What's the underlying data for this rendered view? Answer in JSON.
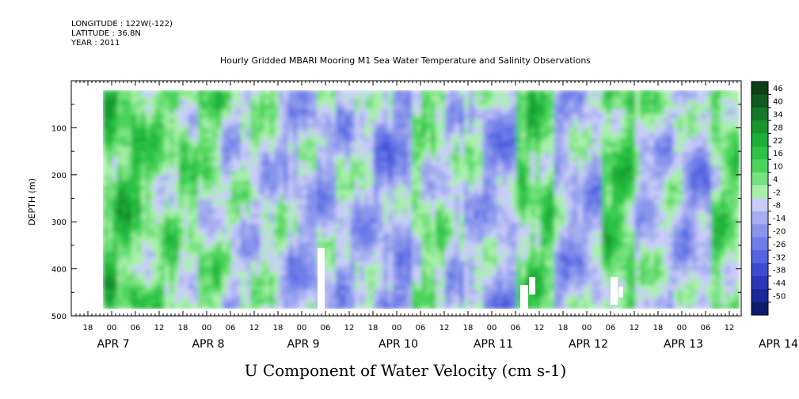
{
  "header": {
    "longitude": "LONGITUDE : 122W(-122)",
    "latitude": "LATITUDE : 36.8N",
    "year": "YEAR : 2011"
  },
  "chart_data": {
    "type": "heatmap",
    "title": "Hourly Gridded MBARI Mooring M1 Sea Water Temperature and Salinity Observations",
    "xlabel": "U Component of Water Velocity (cm s-1)",
    "ylabel": "DEPTH (m)",
    "ylim": [
      500,
      0
    ],
    "yticks": [
      "100",
      "200",
      "300",
      "400",
      "500"
    ],
    "ytick_values": [
      100,
      200,
      300,
      400,
      500
    ],
    "x_hour_labels": [
      "18",
      "00",
      "06",
      "12",
      "18",
      "00",
      "06",
      "12",
      "18",
      "00",
      "06",
      "12",
      "18",
      "00",
      "06",
      "12",
      "18",
      "00",
      "06",
      "12",
      "18",
      "00",
      "06",
      "12",
      "18",
      "00",
      "06",
      "12"
    ],
    "x_date_labels": [
      "APR  7",
      "APR  8",
      "APR  9",
      "APR 10",
      "APR 11",
      "APR 12",
      "APR 13",
      "APR 14"
    ],
    "x_range_hours": [
      "2011-04-06 15:00",
      "2011-04-14 17:00"
    ],
    "data_depth_range": [
      20,
      485
    ],
    "colorbar": {
      "labels": [
        "46",
        "40",
        "34",
        "28",
        "22",
        "16",
        "10",
        "4",
        "-2",
        "-8",
        "-14",
        "-20",
        "-26",
        "-32",
        "-38",
        "-44",
        "-50"
      ],
      "levels": [
        46,
        40,
        34,
        28,
        22,
        16,
        10,
        4,
        -2,
        -8,
        -14,
        -20,
        -26,
        -32,
        -38,
        -44,
        -50
      ],
      "colors_top_to_bottom": [
        "#0b3f16",
        "#0f5a1e",
        "#137a26",
        "#17962e",
        "#1cae38",
        "#2cc244",
        "#4ad45a",
        "#78e280",
        "#a8f0aa",
        "#c8ccf8",
        "#a6aef0",
        "#8a96ec",
        "#6e7ee8",
        "#5264e0",
        "#3c4cd2",
        "#2a38b8",
        "#1c2896",
        "#101a6c"
      ]
    },
    "grid": false,
    "legend": "colorbar-right"
  }
}
